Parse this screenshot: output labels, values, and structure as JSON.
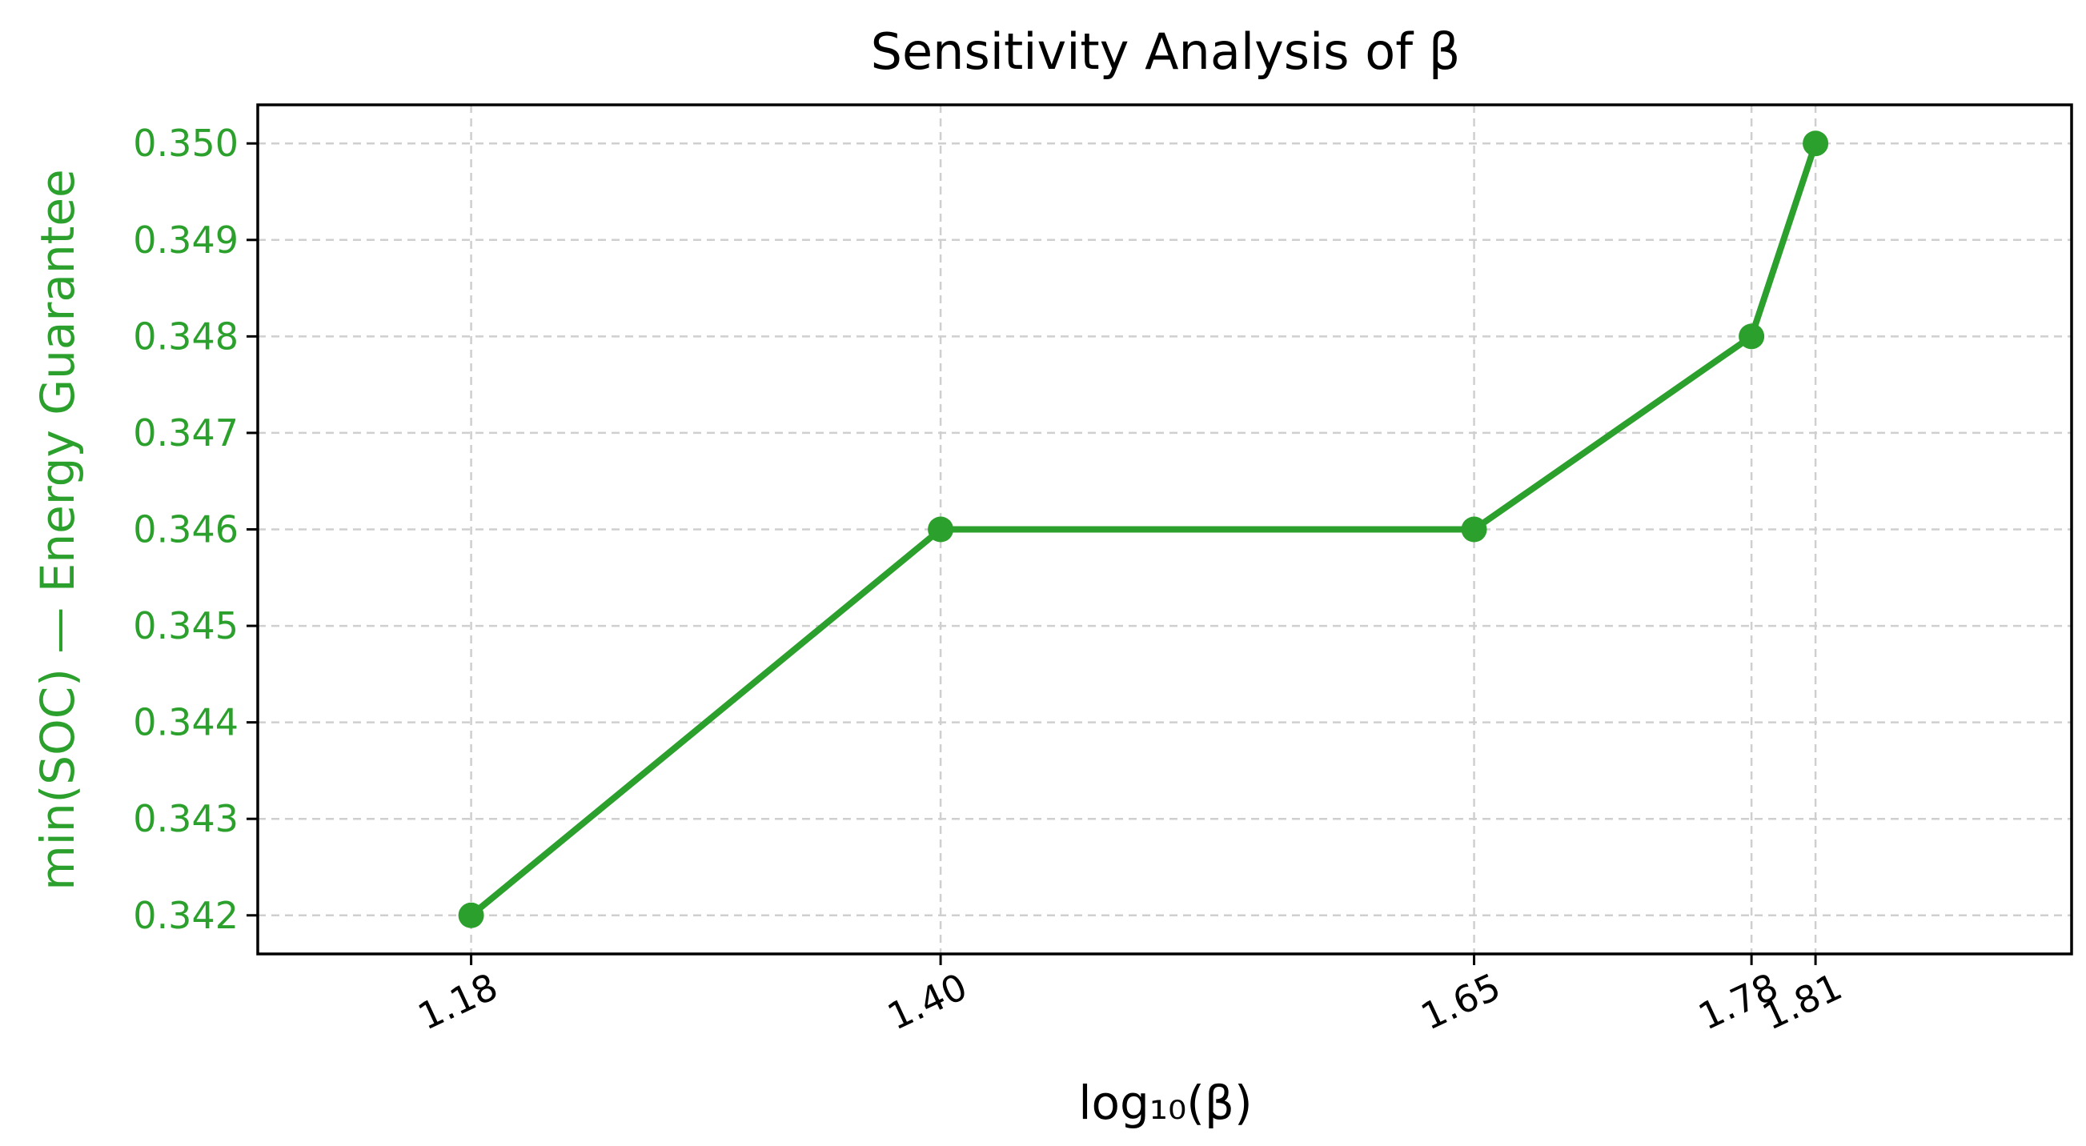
{
  "chart_data": {
    "type": "line",
    "title": "Sensitivity Analysis of β",
    "xlabel": "log₁₀(β)",
    "ylabel": "min(SOC) — Energy Guarantee",
    "x": [
      1.18,
      1.4,
      1.65,
      1.78,
      1.81
    ],
    "x_tick_labels": [
      "1.18",
      "1.40",
      "1.65",
      "1.78",
      "1.81"
    ],
    "y_ticks": [
      0.342,
      0.343,
      0.344,
      0.345,
      0.346,
      0.347,
      0.348,
      0.349,
      0.35
    ],
    "y_tick_labels": [
      "0.342",
      "0.343",
      "0.344",
      "0.345",
      "0.346",
      "0.347",
      "0.348",
      "0.349",
      "0.350"
    ],
    "series": [
      {
        "values": [
          0.342,
          0.346,
          0.346,
          0.348,
          0.35
        ]
      }
    ],
    "xlim": [
      1.08,
      1.93
    ],
    "ylim": [
      0.3416,
      0.3504
    ],
    "grid": true,
    "color": "#2ca02c",
    "axis_color": "#000000",
    "grid_color": "#cfcfcf",
    "marker": "circle"
  }
}
